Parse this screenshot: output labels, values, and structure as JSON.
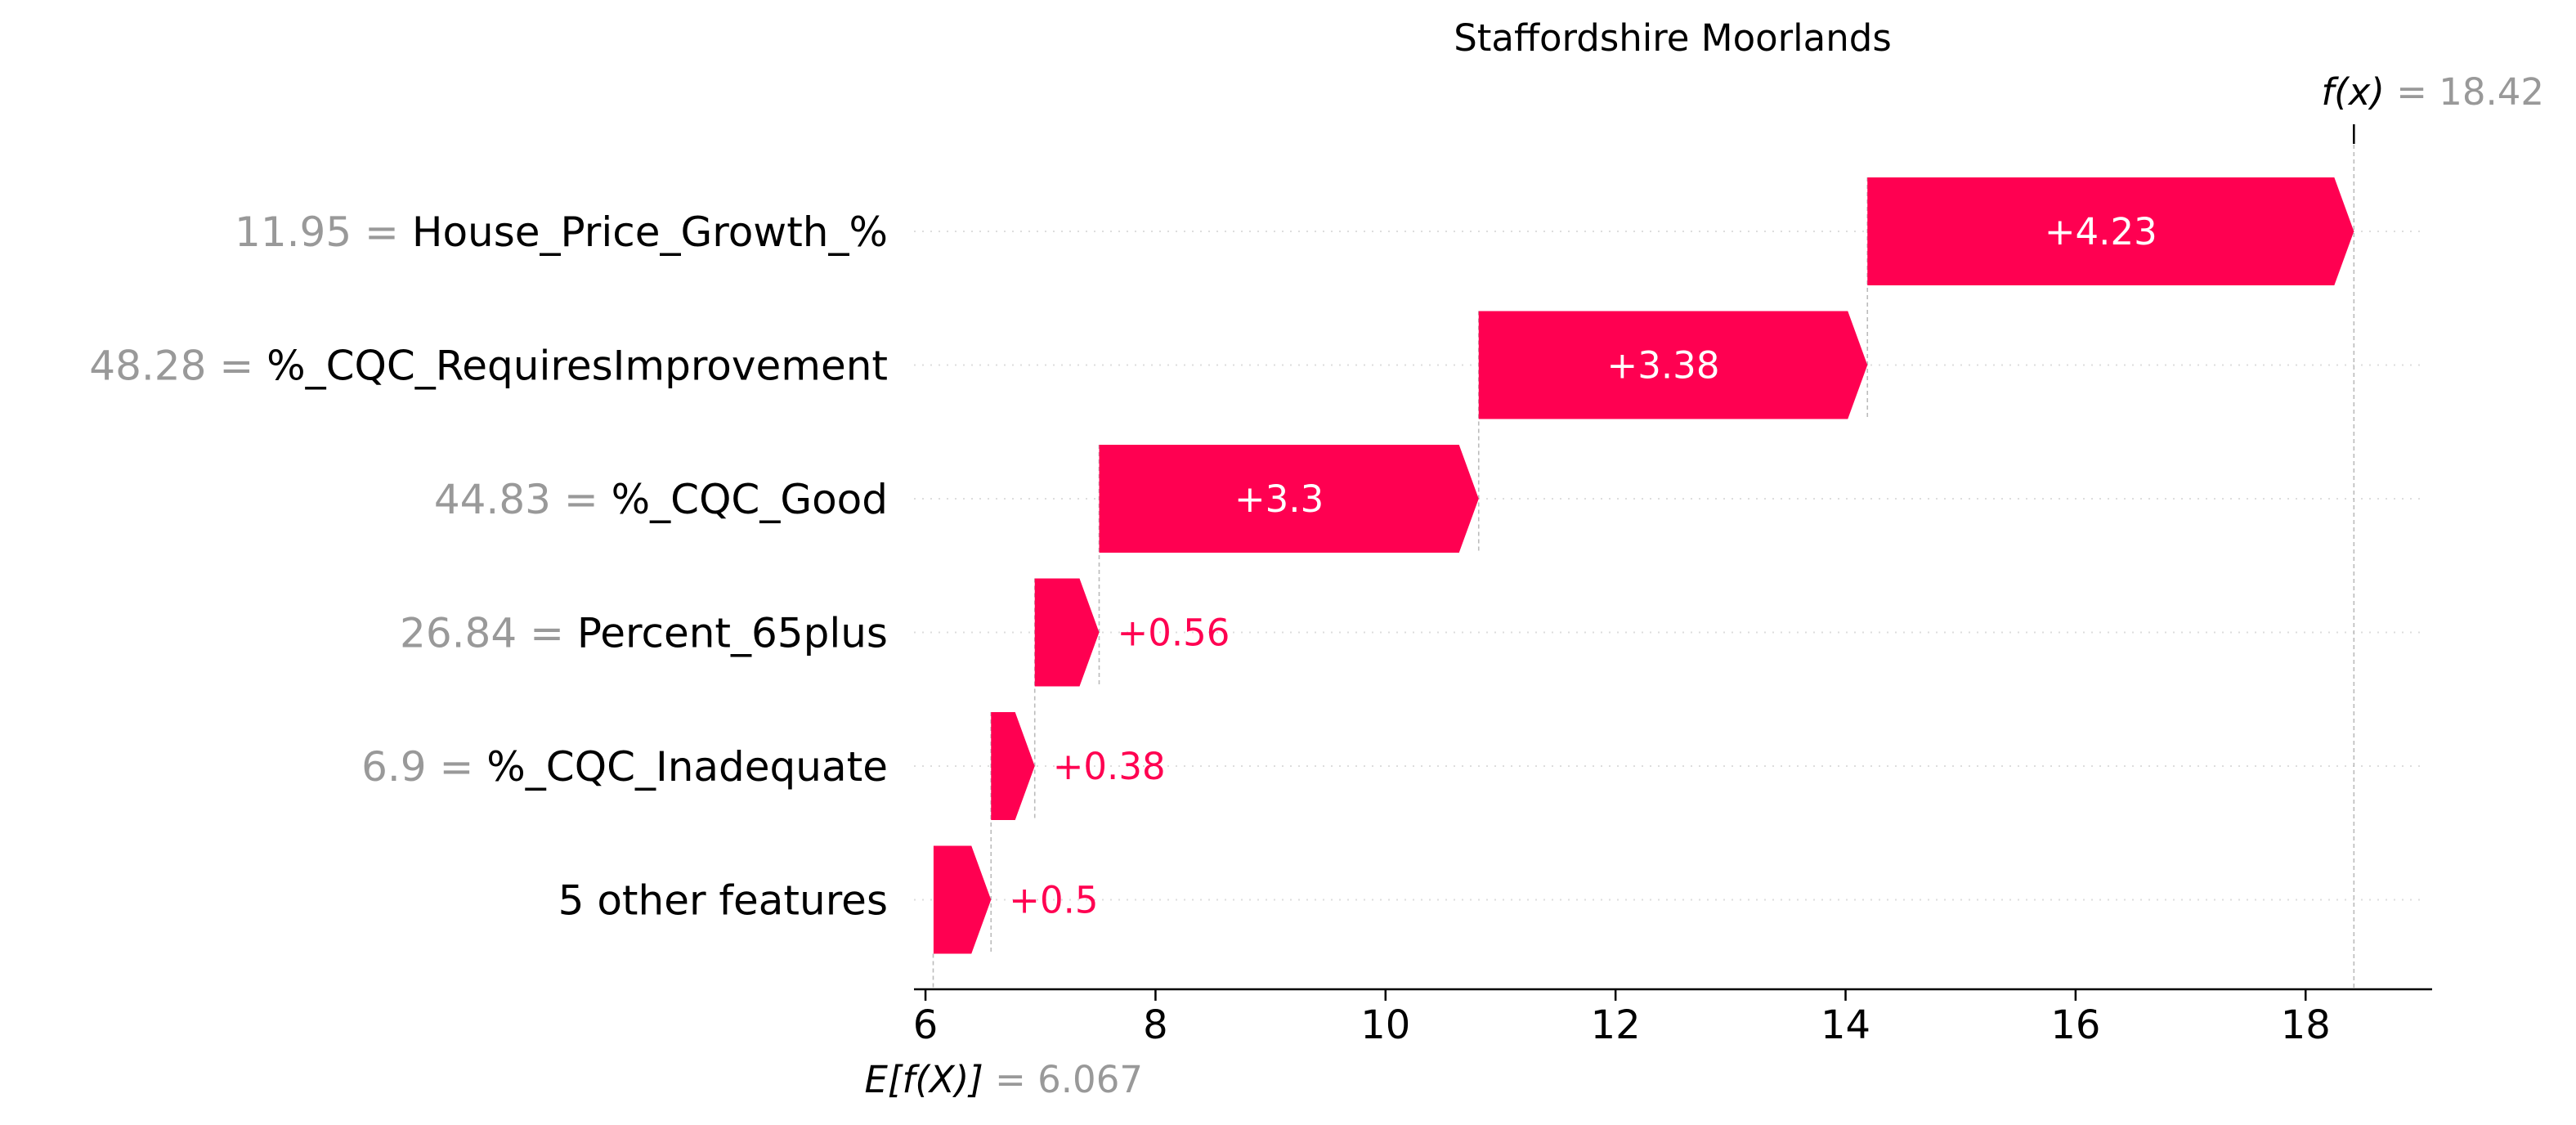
{
  "chart_data": {
    "type": "waterfall",
    "title": "Staffordshire Moorlands",
    "xlim": [
      5.9,
      19.1
    ],
    "xticks": [
      6,
      8,
      10,
      12,
      14,
      16,
      18
    ],
    "xtick_labels": [
      "6",
      "8",
      "10",
      "12",
      "14",
      "16",
      "18"
    ],
    "base_value": 6.067,
    "output_value": 18.42,
    "base_label_prefix": "E[f(X)]",
    "base_label_value": "= 6.067",
    "output_label_prefix": "f(x)",
    "output_label_value": "= 18.42",
    "features": [
      {
        "value_text": "11.95 =",
        "name": "House_Price_Growth_%",
        "shap": 4.23,
        "shap_label": "+4.23"
      },
      {
        "value_text": "48.28 =",
        "name": "%_CQC_RequiresImprovement",
        "shap": 3.38,
        "shap_label": "+3.38"
      },
      {
        "value_text": "44.83 =",
        "name": "%_CQC_Good",
        "shap": 3.3,
        "shap_label": "+3.3"
      },
      {
        "value_text": "26.84 =",
        "name": "Percent_65plus",
        "shap": 0.56,
        "shap_label": "+0.56"
      },
      {
        "value_text": "6.9 =",
        "name": "%_CQC_Inadequate",
        "shap": 0.38,
        "shap_label": "+0.38"
      },
      {
        "value_text": "",
        "name": "5 other features",
        "shap": 0.5,
        "shap_label": "+0.5"
      }
    ],
    "colors": {
      "positive": "#ff0051",
      "feature_value_text": "#999999",
      "label_text": "#000000",
      "guide_line": "#bbbbbb"
    }
  }
}
